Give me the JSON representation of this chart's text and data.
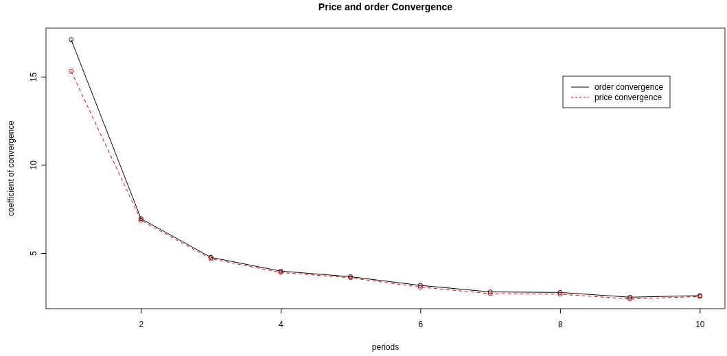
{
  "chart_data": {
    "type": "line",
    "title": "Price and order Convergence",
    "xlabel": "periods",
    "ylabel": "coefficient of convergence",
    "x": [
      1,
      2,
      3,
      4,
      5,
      6,
      7,
      8,
      9,
      10
    ],
    "series": [
      {
        "name": "order convergence",
        "color": "#000000",
        "line_style": "solid",
        "values": [
          17.1,
          6.95,
          4.76,
          3.98,
          3.66,
          3.17,
          2.8,
          2.77,
          2.5,
          2.59
        ]
      },
      {
        "name": "price convergence",
        "color": "#df0000",
        "line_style": "dashed",
        "values": [
          15.3,
          6.86,
          4.68,
          3.9,
          3.6,
          3.07,
          2.7,
          2.67,
          2.4,
          2.54
        ]
      }
    ],
    "xlim": [
      0.64,
      10.36
    ],
    "xticks": [
      2,
      4,
      6,
      8,
      10
    ],
    "ylim": [
      1.85,
      17.75
    ],
    "yticks": [
      5,
      10,
      15
    ],
    "grid": false,
    "legend": "top right",
    "marker": "circle"
  }
}
